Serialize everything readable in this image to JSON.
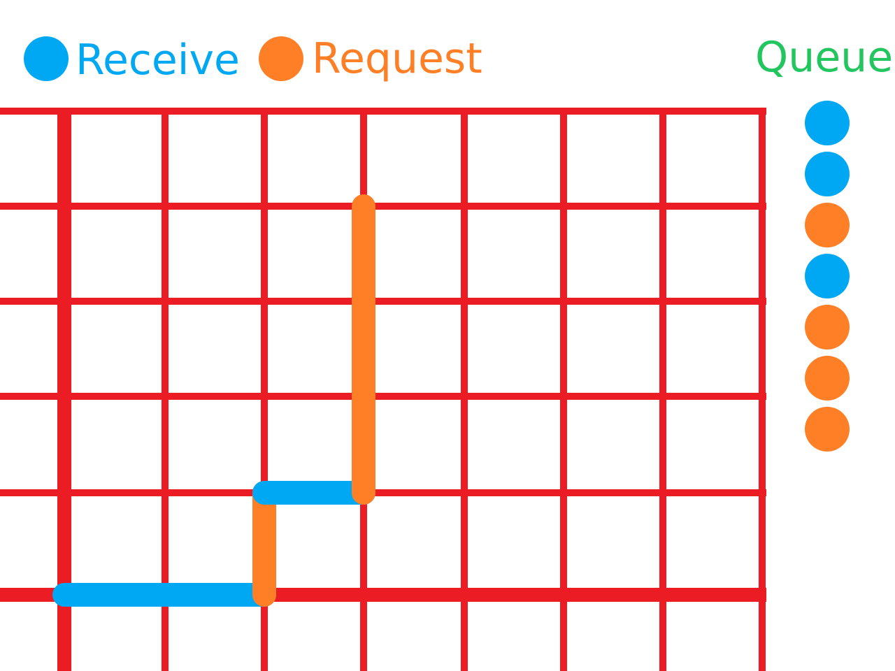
{
  "colors": {
    "grid": "#ec1c24",
    "receive": "#00a8f3",
    "request": "#ff7f27",
    "queue_label": "#22c55e",
    "background": "#ffffff"
  },
  "legend": {
    "receive_label": "Receive",
    "request_label": "Request",
    "queue_label": "Queue"
  },
  "queue": [
    "receive",
    "receive",
    "request",
    "receive",
    "request",
    "request",
    "request"
  ],
  "path": [
    {
      "type": "receive",
      "from": [
        0,
        0
      ],
      "to": [
        2,
        0
      ]
    },
    {
      "type": "request",
      "from": [
        2,
        0
      ],
      "to": [
        2,
        1
      ]
    },
    {
      "type": "receive",
      "from": [
        2,
        1
      ],
      "to": [
        3,
        1
      ]
    },
    {
      "type": "request",
      "from": [
        3,
        1
      ],
      "to": [
        3,
        4
      ]
    }
  ]
}
